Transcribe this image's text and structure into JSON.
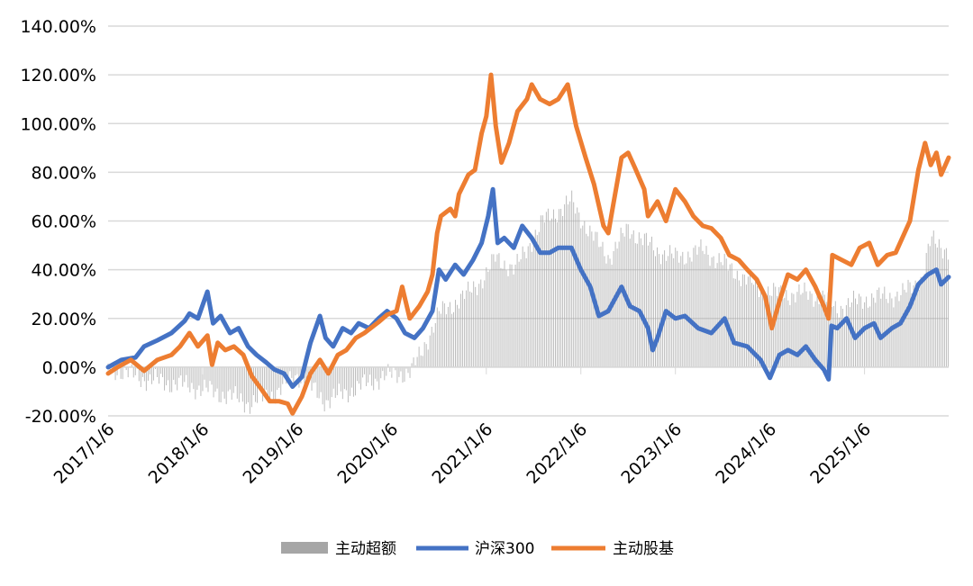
{
  "chart_data": {
    "type": "line",
    "title": "",
    "xlabel": "",
    "ylabel": "",
    "ylim": [
      -20,
      140
    ],
    "yticks": [
      "-20.00%",
      "0.00%",
      "20.00%",
      "40.00%",
      "60.00%",
      "80.00%",
      "100.00%",
      "120.00%",
      "140.00%"
    ],
    "ytick_values": [
      -20,
      0,
      20,
      40,
      60,
      80,
      100,
      120,
      140
    ],
    "xlim": [
      2017.0,
      2025.89
    ],
    "xticks": [
      "2017/1/6",
      "2018/1/6",
      "2019/1/6",
      "2020/1/6",
      "2021/1/6",
      "2022/1/6",
      "2023/1/6",
      "2024/1/6",
      "2025/1/6"
    ],
    "xtick_values": [
      2017,
      2018,
      2019,
      2020,
      2021,
      2022,
      2023,
      2024,
      2025
    ],
    "grid": true,
    "legend_position": "bottom",
    "colors": {
      "excess": "#a6a6a6",
      "hs300": "#4472c4",
      "active": "#ed7d31",
      "grid": "#d9d9d9"
    },
    "series": [
      {
        "name": "主动超额",
        "type": "bar",
        "color": "#a6a6a6",
        "points": [
          [
            2017.0,
            0
          ],
          [
            2017.4,
            -5
          ],
          [
            2017.9,
            -8
          ],
          [
            2018.3,
            -12
          ],
          [
            2018.5,
            -15
          ],
          [
            2018.8,
            -10
          ],
          [
            2019.0,
            -3
          ],
          [
            2019.3,
            -14
          ],
          [
            2019.6,
            -9
          ],
          [
            2019.9,
            -4
          ],
          [
            2020.2,
            -2
          ],
          [
            2020.3,
            5
          ],
          [
            2020.5,
            22
          ],
          [
            2020.8,
            30
          ],
          [
            2021.0,
            38
          ],
          [
            2021.1,
            45
          ],
          [
            2021.3,
            40
          ],
          [
            2021.6,
            60
          ],
          [
            2021.9,
            68
          ],
          [
            2022.1,
            55
          ],
          [
            2022.3,
            45
          ],
          [
            2022.5,
            57
          ],
          [
            2022.8,
            48
          ],
          [
            2023.0,
            45
          ],
          [
            2023.3,
            48
          ],
          [
            2023.6,
            40
          ],
          [
            2023.9,
            32
          ],
          [
            2024.1,
            30
          ],
          [
            2024.4,
            30
          ],
          [
            2024.6,
            28
          ],
          [
            2024.7,
            24
          ],
          [
            2025.0,
            28
          ],
          [
            2025.4,
            30
          ],
          [
            2025.6,
            36
          ],
          [
            2025.7,
            52
          ],
          [
            2025.89,
            48
          ]
        ]
      },
      {
        "name": "沪深300",
        "type": "line",
        "color": "#4472c4",
        "points": [
          [
            2017.0,
            0
          ],
          [
            2017.14,
            3
          ],
          [
            2017.29,
            4
          ],
          [
            2017.38,
            8.5
          ],
          [
            2017.52,
            11
          ],
          [
            2017.67,
            14
          ],
          [
            2017.81,
            19
          ],
          [
            2017.86,
            22
          ],
          [
            2017.95,
            20
          ],
          [
            2018.05,
            31
          ],
          [
            2018.11,
            18
          ],
          [
            2018.19,
            21
          ],
          [
            2018.29,
            14
          ],
          [
            2018.38,
            16
          ],
          [
            2018.48,
            8.5
          ],
          [
            2018.57,
            5
          ],
          [
            2018.67,
            2
          ],
          [
            2018.76,
            -1
          ],
          [
            2018.86,
            -2.6
          ],
          [
            2018.95,
            -8
          ],
          [
            2019.05,
            -4
          ],
          [
            2019.14,
            10
          ],
          [
            2019.24,
            21
          ],
          [
            2019.3,
            12
          ],
          [
            2019.38,
            8.5
          ],
          [
            2019.48,
            16
          ],
          [
            2019.57,
            14
          ],
          [
            2019.65,
            18
          ],
          [
            2019.76,
            16
          ],
          [
            2019.86,
            20
          ],
          [
            2019.95,
            23
          ],
          [
            2020.05,
            20
          ],
          [
            2020.14,
            14
          ],
          [
            2020.24,
            12
          ],
          [
            2020.33,
            16
          ],
          [
            2020.43,
            23
          ],
          [
            2020.5,
            40
          ],
          [
            2020.57,
            36
          ],
          [
            2020.67,
            42
          ],
          [
            2020.76,
            38
          ],
          [
            2020.86,
            44
          ],
          [
            2020.95,
            51
          ],
          [
            2021.02,
            62
          ],
          [
            2021.07,
            73
          ],
          [
            2021.12,
            51
          ],
          [
            2021.19,
            53
          ],
          [
            2021.29,
            49
          ],
          [
            2021.38,
            58
          ],
          [
            2021.48,
            53
          ],
          [
            2021.57,
            47
          ],
          [
            2021.67,
            47
          ],
          [
            2021.76,
            49
          ],
          [
            2021.9,
            49
          ],
          [
            2022.0,
            40
          ],
          [
            2022.1,
            33
          ],
          [
            2022.19,
            21
          ],
          [
            2022.29,
            23
          ],
          [
            2022.43,
            33
          ],
          [
            2022.52,
            25
          ],
          [
            2022.62,
            23
          ],
          [
            2022.71,
            16
          ],
          [
            2022.76,
            7
          ],
          [
            2022.81,
            12
          ],
          [
            2022.9,
            23
          ],
          [
            2023.0,
            20
          ],
          [
            2023.1,
            21
          ],
          [
            2023.24,
            16
          ],
          [
            2023.38,
            14
          ],
          [
            2023.52,
            20
          ],
          [
            2023.62,
            10
          ],
          [
            2023.76,
            8.5
          ],
          [
            2023.9,
            3
          ],
          [
            2024.0,
            -4.4
          ],
          [
            2024.1,
            5
          ],
          [
            2024.19,
            7
          ],
          [
            2024.29,
            5
          ],
          [
            2024.38,
            8.5
          ],
          [
            2024.48,
            3
          ],
          [
            2024.57,
            -1
          ],
          [
            2024.62,
            -5
          ],
          [
            2024.65,
            17
          ],
          [
            2024.71,
            16
          ],
          [
            2024.81,
            20
          ],
          [
            2024.9,
            12
          ],
          [
            2025.0,
            16
          ],
          [
            2025.1,
            18
          ],
          [
            2025.17,
            12
          ],
          [
            2025.29,
            16
          ],
          [
            2025.38,
            18
          ],
          [
            2025.48,
            25
          ],
          [
            2025.57,
            34
          ],
          [
            2025.67,
            38
          ],
          [
            2025.76,
            40
          ],
          [
            2025.81,
            34
          ],
          [
            2025.89,
            37
          ]
        ]
      },
      {
        "name": "主动股基",
        "type": "line",
        "color": "#ed7d31",
        "points": [
          [
            2017.0,
            -2.6
          ],
          [
            2017.1,
            0
          ],
          [
            2017.24,
            3
          ],
          [
            2017.38,
            -1.5
          ],
          [
            2017.52,
            3
          ],
          [
            2017.67,
            5
          ],
          [
            2017.76,
            8.5
          ],
          [
            2017.86,
            14
          ],
          [
            2017.95,
            8.5
          ],
          [
            2018.05,
            13
          ],
          [
            2018.1,
            1
          ],
          [
            2018.16,
            10
          ],
          [
            2018.24,
            7
          ],
          [
            2018.33,
            8.5
          ],
          [
            2018.43,
            5
          ],
          [
            2018.52,
            -3.7
          ],
          [
            2018.62,
            -9
          ],
          [
            2018.71,
            -14
          ],
          [
            2018.81,
            -14
          ],
          [
            2018.9,
            -15
          ],
          [
            2018.95,
            -19
          ],
          [
            2019.05,
            -12
          ],
          [
            2019.14,
            -2.6
          ],
          [
            2019.24,
            3
          ],
          [
            2019.33,
            -2.6
          ],
          [
            2019.43,
            5
          ],
          [
            2019.52,
            7
          ],
          [
            2019.62,
            12
          ],
          [
            2019.71,
            14
          ],
          [
            2019.86,
            18.5
          ],
          [
            2019.95,
            21.5
          ],
          [
            2020.05,
            23
          ],
          [
            2020.11,
            33
          ],
          [
            2020.19,
            20
          ],
          [
            2020.29,
            25
          ],
          [
            2020.38,
            31
          ],
          [
            2020.43,
            38
          ],
          [
            2020.48,
            55
          ],
          [
            2020.52,
            62
          ],
          [
            2020.62,
            65
          ],
          [
            2020.67,
            62
          ],
          [
            2020.71,
            71
          ],
          [
            2020.81,
            79
          ],
          [
            2020.88,
            81
          ],
          [
            2020.95,
            96
          ],
          [
            2021.0,
            103
          ],
          [
            2021.05,
            120
          ],
          [
            2021.1,
            99
          ],
          [
            2021.16,
            84
          ],
          [
            2021.24,
            92
          ],
          [
            2021.33,
            105
          ],
          [
            2021.43,
            110
          ],
          [
            2021.48,
            116
          ],
          [
            2021.57,
            110
          ],
          [
            2021.67,
            108
          ],
          [
            2021.76,
            110
          ],
          [
            2021.86,
            116
          ],
          [
            2021.95,
            99
          ],
          [
            2022.05,
            86
          ],
          [
            2022.14,
            75
          ],
          [
            2022.24,
            58
          ],
          [
            2022.29,
            55
          ],
          [
            2022.33,
            64
          ],
          [
            2022.43,
            86
          ],
          [
            2022.5,
            88
          ],
          [
            2022.57,
            82
          ],
          [
            2022.67,
            73
          ],
          [
            2022.71,
            62
          ],
          [
            2022.81,
            68
          ],
          [
            2022.9,
            60
          ],
          [
            2023.0,
            73
          ],
          [
            2023.1,
            68
          ],
          [
            2023.19,
            62
          ],
          [
            2023.29,
            58
          ],
          [
            2023.38,
            57
          ],
          [
            2023.48,
            53
          ],
          [
            2023.57,
            46
          ],
          [
            2023.67,
            44
          ],
          [
            2023.76,
            40
          ],
          [
            2023.86,
            36
          ],
          [
            2023.95,
            29
          ],
          [
            2024.02,
            16
          ],
          [
            2024.1,
            27
          ],
          [
            2024.19,
            38
          ],
          [
            2024.29,
            36
          ],
          [
            2024.38,
            40
          ],
          [
            2024.48,
            33
          ],
          [
            2024.57,
            25
          ],
          [
            2024.62,
            20
          ],
          [
            2024.66,
            46
          ],
          [
            2024.76,
            44
          ],
          [
            2024.86,
            42
          ],
          [
            2024.95,
            49
          ],
          [
            2025.05,
            51
          ],
          [
            2025.14,
            42
          ],
          [
            2025.24,
            46
          ],
          [
            2025.33,
            47
          ],
          [
            2025.48,
            60
          ],
          [
            2025.57,
            81
          ],
          [
            2025.64,
            92
          ],
          [
            2025.7,
            83
          ],
          [
            2025.76,
            88
          ],
          [
            2025.81,
            79
          ],
          [
            2025.89,
            86
          ]
        ]
      }
    ]
  },
  "legend": {
    "excess": "主动超额",
    "hs300": "沪深300",
    "active": "主动股基"
  }
}
